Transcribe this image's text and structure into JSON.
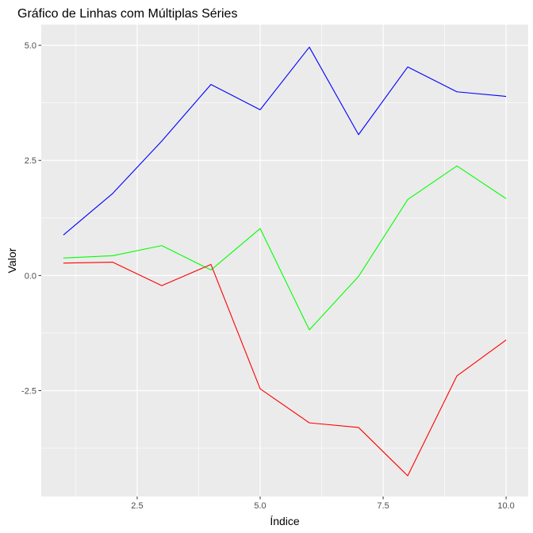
{
  "chart_data": {
    "type": "line",
    "title": "Gráfico de Linhas com Múltiplas Séries",
    "xlabel": "Índice",
    "ylabel": "Valor",
    "xlim": [
      0.55,
      10.45
    ],
    "ylim": [
      -4.8,
      5.45
    ],
    "x_ticks": [
      {
        "value": 2.5,
        "label": "2.5"
      },
      {
        "value": 5,
        "label": "5.0"
      },
      {
        "value": 7.5,
        "label": "7.5"
      },
      {
        "value": 10,
        "label": "10.0"
      }
    ],
    "y_ticks": [
      {
        "value": 5,
        "label": "5.0"
      },
      {
        "value": 2.5,
        "label": "2.5"
      },
      {
        "value": 0,
        "label": "0.0"
      },
      {
        "value": -2.5,
        "label": "-2.5"
      }
    ],
    "x_minor": [
      1.25,
      3.75,
      6.25,
      8.75
    ],
    "y_minor": [
      3.75,
      1.25,
      -1.25,
      -3.75
    ],
    "grid": true,
    "background": "#ebebeb",
    "x": [
      1,
      2,
      3,
      4,
      5,
      6,
      7,
      8,
      9,
      10
    ],
    "series": [
      {
        "color": "#0000ff",
        "values": [
          0.88,
          1.78,
          2.92,
          4.15,
          3.6,
          4.96,
          3.06,
          4.53,
          3.99,
          3.89
        ]
      },
      {
        "color": "#00ff00",
        "values": [
          0.38,
          0.43,
          0.65,
          0.12,
          1.02,
          -1.18,
          -0.02,
          1.65,
          2.38,
          1.67
        ]
      },
      {
        "color": "#ff0000",
        "values": [
          0.27,
          0.29,
          -0.22,
          0.24,
          -2.46,
          -3.2,
          -3.3,
          -4.35,
          -2.18,
          -1.4
        ]
      }
    ]
  }
}
